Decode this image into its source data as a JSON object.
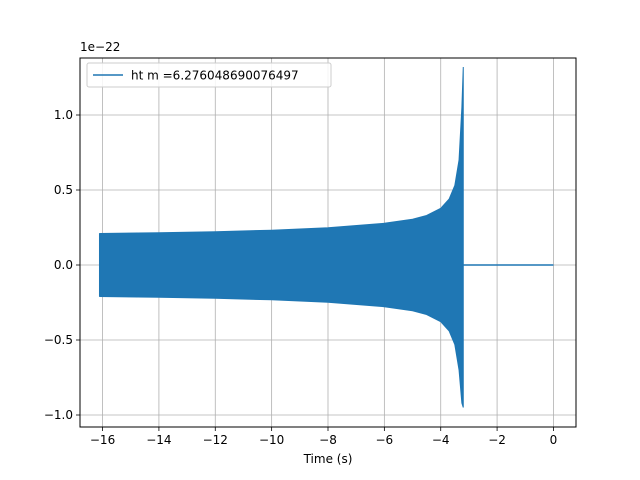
{
  "chart_data": {
    "type": "line",
    "title": "",
    "xlabel": "Time (s)",
    "ylabel": "",
    "offset_label": "1e−22",
    "xlim": [
      -16.8,
      0.8
    ],
    "ylim": [
      -1.08,
      1.38
    ],
    "x_ticks": [
      -16,
      -14,
      -12,
      -10,
      -8,
      -6,
      -4,
      -2,
      0
    ],
    "x_tick_labels": [
      "−16",
      "−14",
      "−12",
      "−10",
      "−8",
      "−6",
      "−4",
      "−2",
      "0"
    ],
    "y_ticks": [
      -1.0,
      -0.5,
      0.0,
      0.5,
      1.0
    ],
    "y_tick_labels": [
      "−1.0",
      "−0.5",
      "0.0",
      "0.5",
      "1.0"
    ],
    "grid": true,
    "legend_position": "top-left",
    "series": [
      {
        "name": "ht m =6.276048690076497",
        "color": "#1f77b4",
        "x_start": -16.1,
        "merger_time": -3.2,
        "x_end": 0.0,
        "envelope": {
          "t": [
            -16.1,
            -14.0,
            -12.0,
            -10.0,
            -8.0,
            -6.0,
            -5.0,
            -4.5,
            -4.0,
            -3.7,
            -3.5,
            -3.35,
            -3.25,
            -3.2
          ],
          "upper": [
            0.21,
            0.215,
            0.222,
            0.232,
            0.248,
            0.278,
            0.305,
            0.33,
            0.378,
            0.44,
            0.53,
            0.7,
            1.05,
            1.32
          ],
          "lower": [
            -0.21,
            -0.215,
            -0.222,
            -0.232,
            -0.248,
            -0.278,
            -0.305,
            -0.33,
            -0.378,
            -0.44,
            -0.53,
            -0.7,
            -0.92,
            -0.95
          ]
        }
      }
    ]
  }
}
